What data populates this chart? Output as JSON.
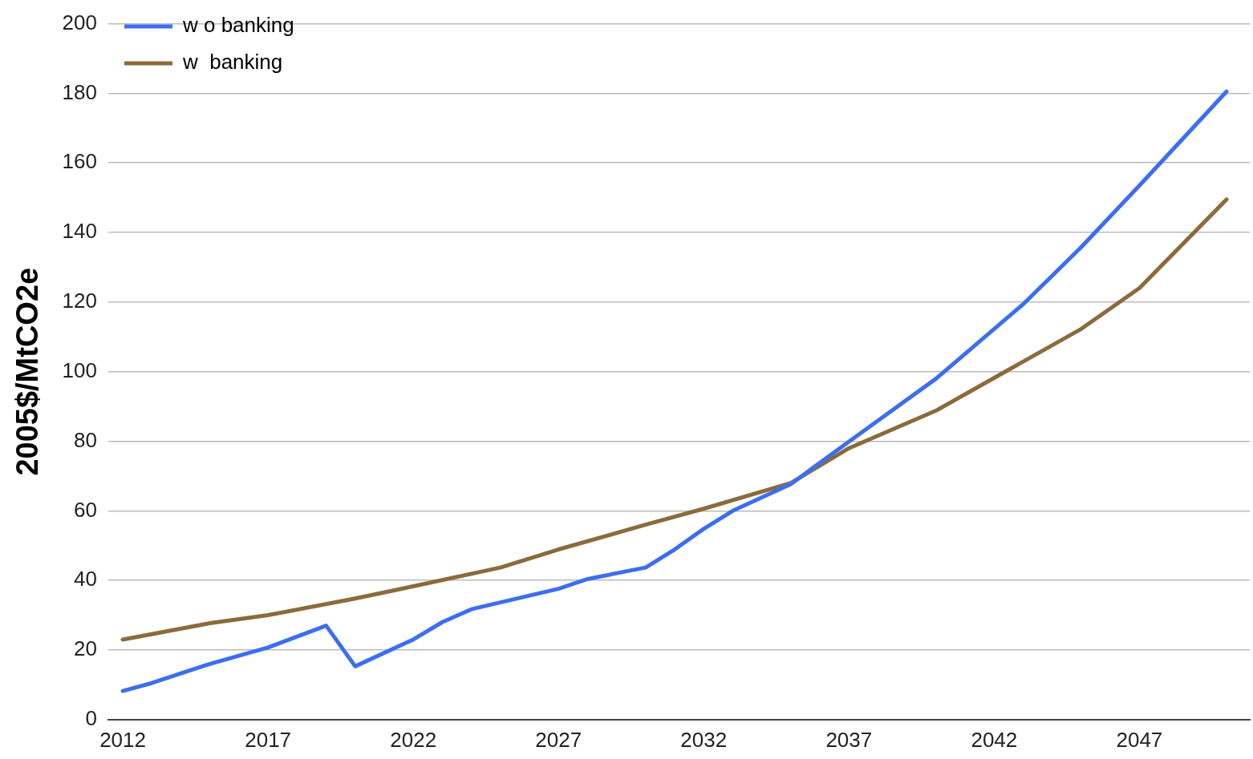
{
  "chart_data": {
    "type": "line",
    "ylabel": "2005$/MtCO2e",
    "xlim": [
      2011.5,
      2050.8
    ],
    "xticks": [
      2012,
      2017,
      2022,
      2027,
      2032,
      2037,
      2042,
      2047
    ],
    "ylim": [
      0,
      200
    ],
    "yticks": [
      0,
      20,
      40,
      60,
      80,
      100,
      120,
      140,
      160,
      180,
      200
    ],
    "grid": "y",
    "legend": "top left",
    "marker": "none",
    "line_style": "solid",
    "series": [
      {
        "name": "w o banking",
        "color": "#3d6ef0",
        "x": [
          2012,
          2013,
          2015,
          2017,
          2019,
          2020,
          2022,
          2023,
          2024,
          2027,
          2028,
          2030,
          2031,
          2032,
          2033,
          2035,
          2037,
          2040,
          2043,
          2045,
          2047,
          2050
        ],
        "values": [
          8.2,
          10.5,
          16,
          20.7,
          27,
          15.3,
          23,
          28,
          31.7,
          37.6,
          40.4,
          43.7,
          48.9,
          54.8,
          60,
          67.7,
          79.9,
          98,
          119.4,
          135.8,
          153.5,
          180.5
        ]
      },
      {
        "name": "w  banking",
        "color": "#8b6b3c",
        "x": [
          2012,
          2015,
          2017,
          2020,
          2022,
          2025,
          2027,
          2030,
          2032,
          2035,
          2037,
          2040,
          2042,
          2045,
          2047,
          2050
        ],
        "values": [
          23,
          27.7,
          30,
          34.8,
          38.3,
          43.7,
          48.9,
          56,
          60.6,
          68,
          78,
          88.8,
          98.2,
          112.3,
          124,
          149.5
        ]
      }
    ]
  }
}
